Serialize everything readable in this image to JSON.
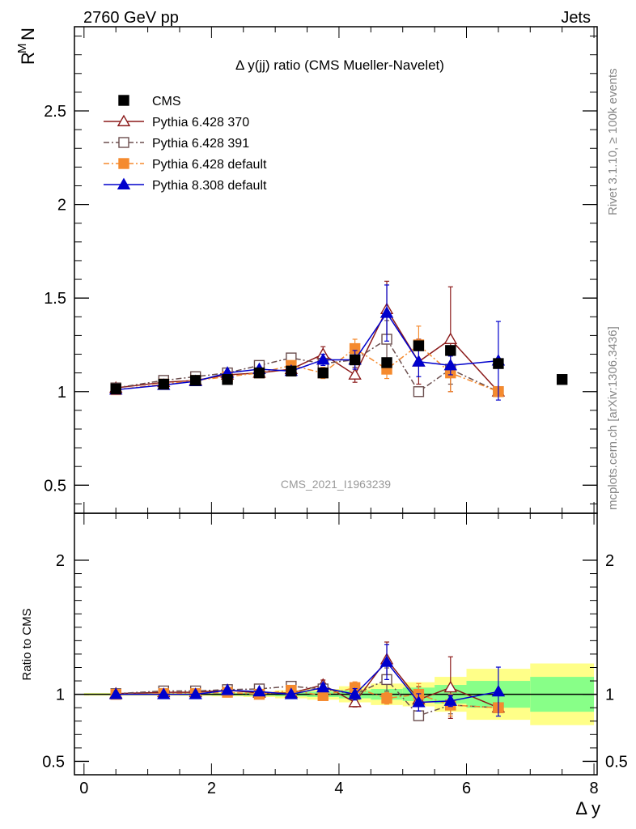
{
  "header": {
    "left": "2760 GeV pp",
    "right": "Jets",
    "side_top": "Rivet 3.1.10, ≥ 100k events",
    "side_bottom": "mcplots.cern.ch [arXiv:1306.3436]"
  },
  "chart_data": [
    {
      "type": "scatter",
      "title": "Δ y(jj) ratio (CMS Mueller-Navelet)",
      "xlabel": "Δ y",
      "ylabel": "R",
      "ylabel_sup": "M",
      "ylabel_sub": "N",
      "watermark": "CMS_2021_I1963239",
      "xlim": [
        -0.15,
        8.05
      ],
      "ylim": [
        0.35,
        2.95
      ],
      "yticks": [
        0.5,
        1,
        1.5,
        2,
        2.5
      ],
      "ytick_labels": [
        "0.5",
        "1",
        "1.5",
        "2",
        "2.5"
      ],
      "x": [
        0.5,
        1.25,
        1.75,
        2.25,
        2.75,
        3.25,
        3.75,
        4.25,
        4.75,
        5.25,
        5.75,
        6.5,
        7.5
      ],
      "legend_position": "top-left",
      "series": [
        {
          "name": "CMS",
          "color": "#000000",
          "marker": "square-filled",
          "line": "none",
          "values": [
            1.015,
            1.04,
            1.06,
            1.065,
            1.1,
            1.11,
            1.1,
            1.17,
            1.155,
            1.245,
            1.22,
            1.15,
            1.065
          ]
        },
        {
          "name": "Pythia 6.428 370",
          "color": "#8b1a1a",
          "marker": "triangle-open",
          "line": "solid",
          "values": [
            1.02,
            1.05,
            1.06,
            1.09,
            1.1,
            1.12,
            1.2,
            1.09,
            1.44,
            1.16,
            1.28,
            1.0,
            null
          ],
          "errors": [
            0.005,
            0.005,
            0.01,
            0.01,
            0.01,
            0.015,
            0.04,
            0.04,
            0.15,
            0.12,
            0.28,
            0.0,
            null
          ]
        },
        {
          "name": "Pythia 6.428 391",
          "color": "#6b4e4e",
          "marker": "square-open",
          "line": "dash-dot",
          "values": [
            1.02,
            1.06,
            1.08,
            1.1,
            1.14,
            1.18,
            1.15,
            1.17,
            1.28,
            1.0,
            1.12,
            1.0,
            null
          ],
          "errors": [
            0.005,
            0.005,
            0.01,
            0.01,
            0.01,
            0.015,
            0.03,
            0.04,
            0.1,
            0.0,
            0.08,
            0.0,
            null
          ]
        },
        {
          "name": "Pythia 6.428 default",
          "color": "#f58a2e",
          "marker": "square-filled",
          "line": "dash-dot",
          "values": [
            1.01,
            1.04,
            1.06,
            1.08,
            1.1,
            1.14,
            1.1,
            1.23,
            1.12,
            1.25,
            1.1,
            1.0,
            null
          ],
          "errors": [
            0.005,
            0.005,
            0.01,
            0.01,
            0.01,
            0.015,
            0.03,
            0.05,
            0.05,
            0.1,
            0.1,
            0.0,
            null
          ]
        },
        {
          "name": "Pythia 8.308 default",
          "color": "#0000cc",
          "marker": "triangle-filled",
          "line": "solid",
          "values": [
            1.01,
            1.035,
            1.055,
            1.1,
            1.12,
            1.11,
            1.17,
            1.17,
            1.42,
            1.16,
            1.14,
            1.165,
            null
          ],
          "errors": [
            0.005,
            0.005,
            0.01,
            0.01,
            0.01,
            0.015,
            0.03,
            0.05,
            0.15,
            0.08,
            0.05,
            0.21,
            null
          ]
        }
      ]
    },
    {
      "type": "scatter",
      "title": "",
      "ylabel": "Ratio to CMS",
      "xlabel": "Δ y",
      "xlim": [
        -0.15,
        8.05
      ],
      "ylim": [
        0.4,
        2.35
      ],
      "yticks": [
        0.5,
        1,
        2
      ],
      "ytick_labels": [
        "0.5",
        "1",
        "2"
      ],
      "xticks": [
        0,
        2,
        4,
        6,
        8
      ],
      "xtick_labels": [
        "0",
        "2",
        "4",
        "6",
        "8"
      ],
      "x": [
        0.5,
        1.25,
        1.75,
        2.25,
        2.75,
        3.25,
        3.75,
        4.25,
        4.75,
        5.25,
        5.75,
        6.5
      ],
      "reference_line": 1,
      "uncertainty_bins": {
        "edges": [
          0,
          1,
          1.5,
          2,
          2.5,
          3,
          3.5,
          4,
          4.5,
          5,
          5.5,
          6,
          7,
          8
        ],
        "green": [
          0.005,
          0.005,
          0.006,
          0.008,
          0.01,
          0.015,
          0.02,
          0.03,
          0.04,
          0.05,
          0.07,
          0.1,
          0.13
        ],
        "yellow": [
          0.01,
          0.01,
          0.012,
          0.015,
          0.02,
          0.03,
          0.04,
          0.06,
          0.08,
          0.09,
          0.13,
          0.19,
          0.23
        ]
      },
      "series": [
        {
          "name": "Pythia 6.428 370",
          "color": "#8b1a1a",
          "marker": "triangle-open",
          "line": "solid",
          "values": [
            1.005,
            1.015,
            1.015,
            1.03,
            1.01,
            1.01,
            1.07,
            0.94,
            1.26,
            0.96,
            1.05,
            0.9
          ]
        },
        {
          "name": "Pythia 6.428 391",
          "color": "#6b4e4e",
          "marker": "square-open",
          "line": "dash-dot",
          "values": [
            1.005,
            1.025,
            1.025,
            1.035,
            1.04,
            1.06,
            1.04,
            1.0,
            1.11,
            0.84,
            0.92,
            0.9
          ]
        },
        {
          "name": "Pythia 6.428 default",
          "color": "#f58a2e",
          "marker": "square-filled",
          "line": "dash-dot",
          "values": [
            1.0,
            1.005,
            1.005,
            1.015,
            1.0,
            1.03,
            0.99,
            1.05,
            0.97,
            1.0,
            0.92,
            0.9
          ]
        },
        {
          "name": "Pythia 8.308 default",
          "color": "#0000cc",
          "marker": "triangle-filled",
          "line": "solid",
          "values": [
            1.0,
            1.0,
            1.0,
            1.03,
            1.02,
            1.0,
            1.05,
            1.0,
            1.24,
            0.94,
            0.95,
            1.02
          ]
        }
      ]
    }
  ]
}
